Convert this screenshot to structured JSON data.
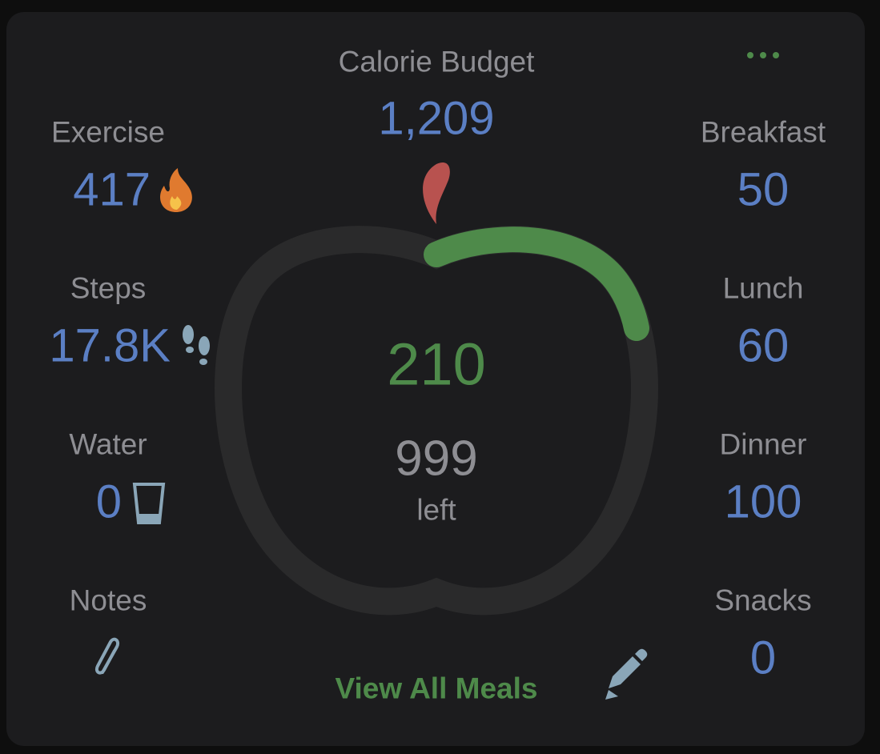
{
  "header": {
    "title": "Calorie Budget",
    "budget": "1,209"
  },
  "left": [
    {
      "label": "Exercise",
      "value": "417"
    },
    {
      "label": "Steps",
      "value": "17.8K"
    },
    {
      "label": "Water",
      "value": "0"
    },
    {
      "label": "Notes"
    }
  ],
  "right": [
    {
      "label": "Breakfast",
      "value": "50"
    },
    {
      "label": "Lunch",
      "value": "60"
    },
    {
      "label": "Dinner",
      "value": "100"
    },
    {
      "label": "Snacks",
      "value": "0"
    }
  ],
  "center": {
    "consumed": "210",
    "remaining": "999",
    "remaining_label": "left"
  },
  "footer": {
    "link": "View All Meals"
  }
}
